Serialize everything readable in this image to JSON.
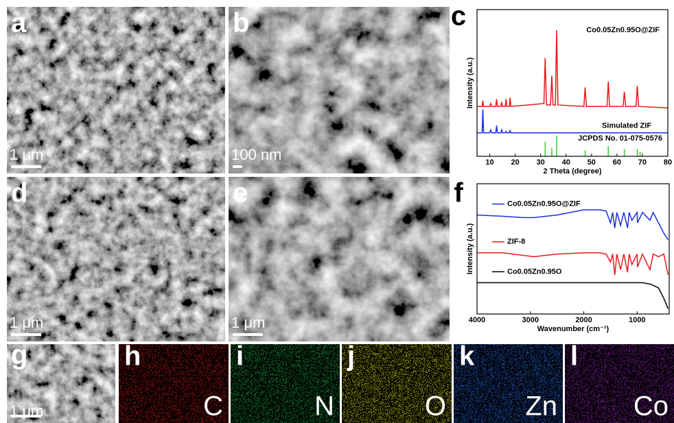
{
  "panels": [
    {
      "label": "a",
      "scale_bar": "1 μm"
    },
    {
      "label": "b",
      "scale_bar": "100 nm"
    },
    {
      "label": "d",
      "scale_bar": "1 μm"
    },
    {
      "label": "e",
      "scale_bar": "1 μm"
    },
    {
      "label": "g",
      "scale_bar": "1 μm"
    }
  ],
  "maps": [
    {
      "label": "h",
      "element": "C",
      "color": "#e3201c"
    },
    {
      "label": "i",
      "element": "N",
      "color": "#22c14a"
    },
    {
      "label": "j",
      "element": "O",
      "color": "#e4e81a"
    },
    {
      "label": "k",
      "element": "Zn",
      "color": "#2a6cf0"
    },
    {
      "label": "l",
      "element": "Co",
      "color": "#9a2cc0"
    }
  ],
  "chart_data": [
    {
      "type": "line",
      "label": "c",
      "xlabel": "2 Theta (degree)",
      "ylabel": "Intensity (a.u.)",
      "xlim": [
        5,
        80
      ],
      "xticks": [
        10,
        20,
        30,
        40,
        50,
        60,
        70,
        80
      ],
      "ylim": [
        0,
        100
      ],
      "x": [
        5,
        7,
        7.3,
        7.6,
        10,
        10.4,
        10.8,
        12.4,
        12.7,
        13,
        14.4,
        14.7,
        15,
        16.1,
        16.4,
        16.7,
        17.7,
        18,
        18.3,
        25,
        31.3,
        31.8,
        32.3,
        33.9,
        34.4,
        34.9,
        35.8,
        36.3,
        36.8,
        47,
        47.5,
        48,
        56.1,
        56.6,
        57.1,
        62.4,
        62.9,
        63.4,
        67.5,
        68,
        68.5,
        80
      ],
      "series": [
        {
          "name": "Co0.05Zn0.95O@ZIF",
          "color": "#e8181c",
          "values": [
            34,
            34,
            38,
            34,
            34,
            36,
            34,
            34,
            39,
            34,
            34,
            37,
            34,
            34,
            39,
            34,
            34,
            40,
            34,
            35,
            36,
            67,
            35,
            35,
            55,
            35,
            35,
            86,
            35,
            34,
            47,
            34,
            34,
            51,
            34,
            34,
            44,
            34,
            34,
            48,
            34,
            33
          ]
        },
        {
          "name": "Simulated ZIF",
          "color": "#1a2ee0",
          "values": [
            16,
            16,
            32,
            16,
            16,
            18,
            16,
            16,
            21,
            16,
            16,
            18,
            16,
            16,
            17,
            16,
            16,
            18,
            16,
            16,
            16,
            16,
            16,
            16,
            16,
            16,
            16,
            16,
            16,
            16,
            16,
            16,
            16,
            16,
            16,
            16,
            16,
            16,
            16,
            16,
            16,
            16
          ]
        }
      ],
      "reference": {
        "name": "JCPDS No. 01-075-0576",
        "color": "#2ecb2e",
        "x": [
          31.8,
          34.4,
          36.3,
          47.5,
          56.6,
          62.9,
          68,
          69.1
        ],
        "values": [
          10,
          6,
          14,
          4,
          7,
          5,
          5,
          3
        ]
      }
    },
    {
      "type": "line",
      "label": "f",
      "xlabel": "Wavenumber (cm⁻¹)",
      "ylabel": "Intensity (a.u.)",
      "xlim": [
        4000,
        400
      ],
      "xticks": [
        4000,
        3000,
        2000,
        1000
      ],
      "ylim": [
        0,
        100
      ],
      "x": [
        4000,
        3500,
        3140,
        2930,
        2500,
        2000,
        1700,
        1580,
        1500,
        1460,
        1420,
        1380,
        1310,
        1250,
        1180,
        1150,
        1100,
        1000,
        995,
        900,
        760,
        700,
        600,
        500,
        420
      ],
      "series": [
        {
          "name": "Co0.05Zn0.95O@ZIF",
          "color": "#1a2ee0",
          "values": [
            76,
            75,
            74,
            74,
            76,
            80,
            80,
            79,
            70,
            78,
            66,
            78,
            68,
            78,
            66,
            78,
            72,
            78,
            70,
            78,
            72,
            78,
            70,
            62,
            57
          ]
        },
        {
          "name": "ZIF-8",
          "color": "#e8181c",
          "values": [
            47,
            47,
            45,
            44,
            46,
            47,
            47,
            46,
            40,
            46,
            30,
            46,
            34,
            46,
            32,
            46,
            38,
            46,
            36,
            46,
            34,
            46,
            44,
            46,
            30
          ]
        },
        {
          "name": "Co0.05Zn0.95O",
          "color": "#000000",
          "values": [
            24,
            24,
            24,
            24,
            24,
            24,
            24,
            24,
            24,
            24,
            24,
            24,
            24,
            24,
            24,
            24,
            24,
            24,
            24,
            24,
            23,
            22,
            20,
            12,
            4
          ]
        }
      ]
    }
  ]
}
